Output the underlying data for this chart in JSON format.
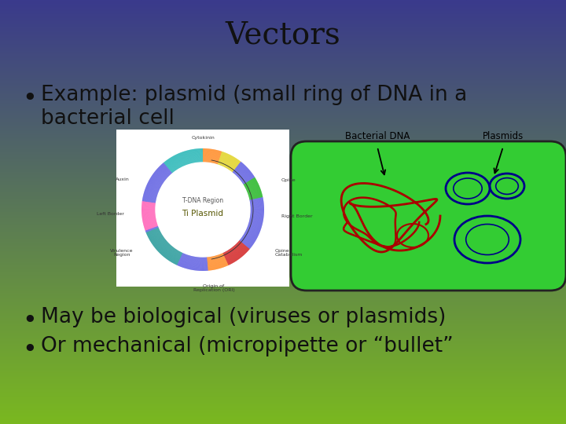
{
  "title": "Vectors",
  "title_fontsize": 28,
  "title_color": "#111111",
  "bullet1a": "Example: plasmid (small ring of DNA in a",
  "bullet1b": "bacterial cell",
  "bullet2": "May be biological (viruses or plasmids)",
  "bullet3": "Or mechanical (micropipette or “bullet”",
  "bullet_fontsize": 19,
  "bullet_color": "#111111",
  "bg_top_color": "#3a3a8c",
  "bg_bottom_color": "#7ab820",
  "plasmid_ring_colors": {
    "blue": "#4444dd",
    "red": "#cc0000",
    "green": "#00aa00",
    "orange": "#ff8800",
    "yellow": "#ddcc00",
    "cyan": "#00cccc",
    "magenta": "#cc00cc",
    "teal": "#008888",
    "pink": "#ff44aa"
  },
  "cell_green": "#33cc33",
  "cell_edge": "#222222",
  "dna_red": "#aa0000",
  "plasmid_blue": "#000088"
}
